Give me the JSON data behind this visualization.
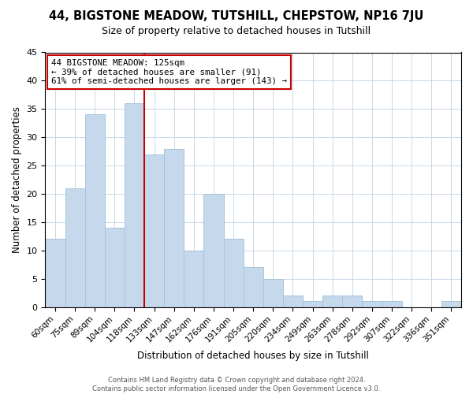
{
  "title": "44, BIGSTONE MEADOW, TUTSHILL, CHEPSTOW, NP16 7JU",
  "subtitle": "Size of property relative to detached houses in Tutshill",
  "xlabel": "Distribution of detached houses by size in Tutshill",
  "ylabel": "Number of detached properties",
  "bar_labels": [
    "60sqm",
    "75sqm",
    "89sqm",
    "104sqm",
    "118sqm",
    "133sqm",
    "147sqm",
    "162sqm",
    "176sqm",
    "191sqm",
    "205sqm",
    "220sqm",
    "234sqm",
    "249sqm",
    "263sqm",
    "278sqm",
    "292sqm",
    "307sqm",
    "322sqm",
    "336sqm",
    "351sqm"
  ],
  "bar_values": [
    12,
    21,
    34,
    14,
    36,
    27,
    28,
    10,
    20,
    12,
    7,
    5,
    2,
    1,
    2,
    2,
    1,
    1,
    0,
    0,
    1
  ],
  "bar_color": "#c5d8ec",
  "bar_edgecolor": "#a8c4db",
  "vline_x": 4.5,
  "vline_color": "#cc0000",
  "ylim": [
    0,
    45
  ],
  "yticks": [
    0,
    5,
    10,
    15,
    20,
    25,
    30,
    35,
    40,
    45
  ],
  "annotation_title": "44 BIGSTONE MEADOW: 125sqm",
  "annotation_line2": "← 39% of detached houses are smaller (91)",
  "annotation_line3": "61% of semi-detached houses are larger (143) →",
  "annotation_box_edgecolor": "#cc0000",
  "footer_line1": "Contains HM Land Registry data © Crown copyright and database right 2024.",
  "footer_line2": "Contains public sector information licensed under the Open Government Licence v3.0.",
  "background_color": "#ffffff",
  "grid_color": "#c8d8e8"
}
